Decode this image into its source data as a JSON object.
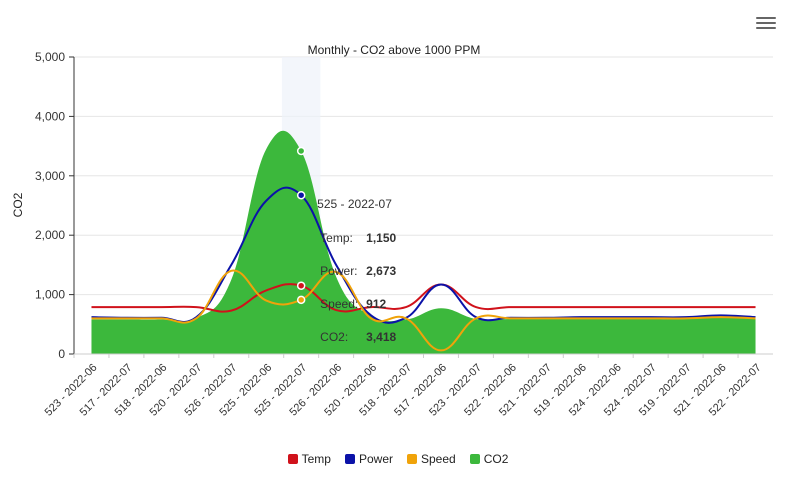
{
  "chart_data": {
    "type": "area",
    "title": "Monthly - CO2 above 1000 PPM",
    "ylabel": "CO2",
    "xlabel": "",
    "ylim": [
      0,
      5000
    ],
    "yticks": [
      0,
      1000,
      2000,
      3000,
      4000,
      5000
    ],
    "ytick_labels": [
      "0",
      "1,000",
      "2,000",
      "3,000",
      "4,000",
      "5,000"
    ],
    "grid": true,
    "legend_position": "bottom",
    "categories": [
      "523 - 2022-06",
      "517 - 2022-07",
      "518 - 2022-06",
      "520 - 2022-07",
      "526 - 2022-07",
      "525 - 2022-06",
      "525 - 2022-07",
      "526 - 2022-06",
      "520 - 2022-06",
      "518 - 2022-07",
      "517 - 2022-06",
      "523 - 2022-07",
      "522 - 2022-06",
      "521 - 2022-07",
      "519 - 2022-06",
      "524 - 2022-06",
      "524 - 2022-07",
      "519 - 2022-07",
      "521 - 2022-06",
      "522 - 2022-07"
    ],
    "series": [
      {
        "name": "Temp",
        "color": "#d0121b",
        "style": "line",
        "values": [
          790,
          790,
          790,
          790,
          730,
          1070,
          1150,
          740,
          790,
          790,
          1170,
          790,
          790,
          790,
          790,
          790,
          790,
          790,
          790,
          790
        ]
      },
      {
        "name": "Power",
        "color": "#0b12a8",
        "style": "line",
        "values": [
          620,
          610,
          610,
          620,
          1500,
          2580,
          2673,
          1500,
          650,
          610,
          1170,
          620,
          610,
          610,
          620,
          620,
          620,
          620,
          650,
          620
        ]
      },
      {
        "name": "Speed",
        "color": "#f0a30a",
        "style": "line",
        "values": [
          600,
          600,
          600,
          600,
          1400,
          900,
          912,
          1380,
          600,
          600,
          60,
          600,
          600,
          600,
          600,
          600,
          600,
          600,
          620,
          600
        ]
      },
      {
        "name": "CO2",
        "color": "#3cb83c",
        "style": "area",
        "values": [
          580,
          580,
          580,
          600,
          1250,
          3450,
          3418,
          1300,
          650,
          580,
          770,
          590,
          590,
          590,
          590,
          590,
          590,
          590,
          620,
          590
        ]
      }
    ],
    "highlight": {
      "category": "525 - 2022-07",
      "index": 6,
      "tooltip": [
        {
          "label": "Temp",
          "value": "1,150"
        },
        {
          "label": "Power",
          "value": "2,673"
        },
        {
          "label": "Speed",
          "value": "912"
        },
        {
          "label": "CO2",
          "value": "3,418"
        }
      ]
    }
  }
}
